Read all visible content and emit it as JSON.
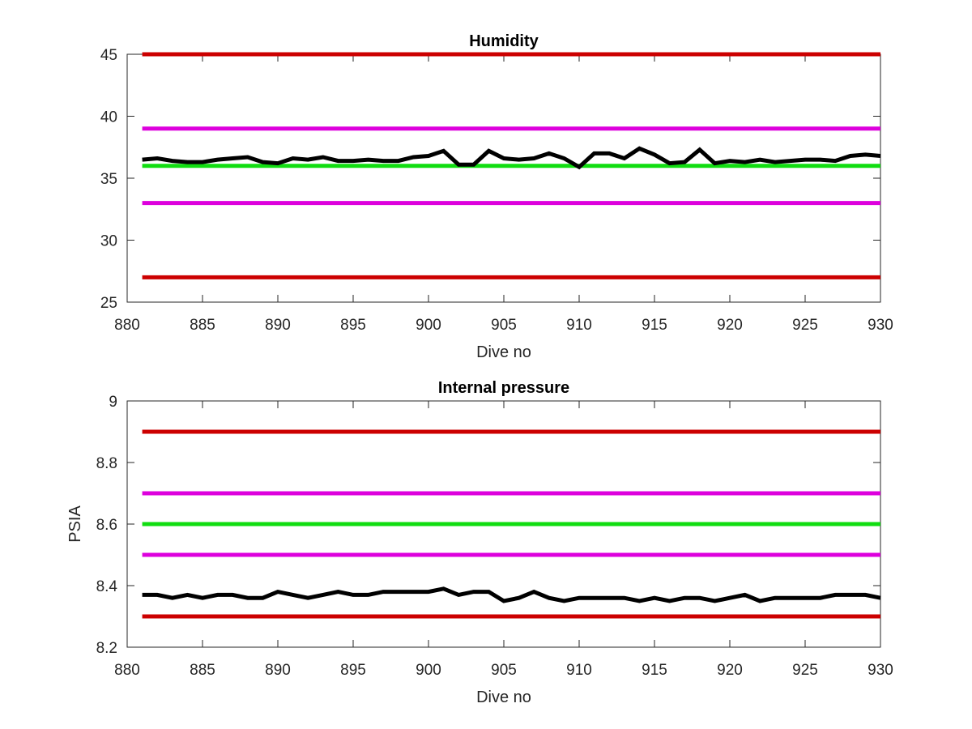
{
  "chart_data": [
    {
      "type": "line",
      "title": "Humidity",
      "xlabel": "Dive no",
      "ylabel": "",
      "xlim": [
        880,
        930
      ],
      "ylim": [
        25,
        45
      ],
      "xticks": [
        880,
        885,
        890,
        895,
        900,
        905,
        910,
        915,
        920,
        925,
        930
      ],
      "yticks": [
        25,
        30,
        35,
        40,
        45
      ],
      "grid": false,
      "x": [
        881,
        882,
        883,
        884,
        885,
        886,
        887,
        888,
        889,
        890,
        891,
        892,
        893,
        894,
        895,
        896,
        897,
        898,
        899,
        900,
        901,
        902,
        903,
        904,
        905,
        906,
        907,
        908,
        909,
        910,
        911,
        912,
        913,
        914,
        915,
        916,
        917,
        918,
        919,
        920,
        921,
        922,
        923,
        924,
        925,
        926,
        927,
        928,
        929,
        930
      ],
      "series": [
        {
          "color": "#cc0000",
          "values": [
            45,
            45,
            45,
            45,
            45,
            45,
            45,
            45,
            45,
            45,
            45,
            45,
            45,
            45,
            45,
            45,
            45,
            45,
            45,
            45,
            45,
            45,
            45,
            45,
            45,
            45,
            45,
            45,
            45,
            45,
            45,
            45,
            45,
            45,
            45,
            45,
            45,
            45,
            45,
            45,
            45,
            45,
            45,
            45,
            45,
            45,
            45,
            45,
            45,
            45
          ]
        },
        {
          "color": "#dd00dd",
          "values": [
            39,
            39,
            39,
            39,
            39,
            39,
            39,
            39,
            39,
            39,
            39,
            39,
            39,
            39,
            39,
            39,
            39,
            39,
            39,
            39,
            39,
            39,
            39,
            39,
            39,
            39,
            39,
            39,
            39,
            39,
            39,
            39,
            39,
            39,
            39,
            39,
            39,
            39,
            39,
            39,
            39,
            39,
            39,
            39,
            39,
            39,
            39,
            39,
            39,
            39
          ]
        },
        {
          "color": "#11dd11",
          "values": [
            36,
            36,
            36,
            36,
            36,
            36,
            36,
            36,
            36,
            36,
            36,
            36,
            36,
            36,
            36,
            36,
            36,
            36,
            36,
            36,
            36,
            36,
            36,
            36,
            36,
            36,
            36,
            36,
            36,
            36,
            36,
            36,
            36,
            36,
            36,
            36,
            36,
            36,
            36,
            36,
            36,
            36,
            36,
            36,
            36,
            36,
            36,
            36,
            36,
            36
          ]
        },
        {
          "color": "#dd00dd",
          "values": [
            33,
            33,
            33,
            33,
            33,
            33,
            33,
            33,
            33,
            33,
            33,
            33,
            33,
            33,
            33,
            33,
            33,
            33,
            33,
            33,
            33,
            33,
            33,
            33,
            33,
            33,
            33,
            33,
            33,
            33,
            33,
            33,
            33,
            33,
            33,
            33,
            33,
            33,
            33,
            33,
            33,
            33,
            33,
            33,
            33,
            33,
            33,
            33,
            33,
            33
          ]
        },
        {
          "color": "#cc0000",
          "values": [
            27,
            27,
            27,
            27,
            27,
            27,
            27,
            27,
            27,
            27,
            27,
            27,
            27,
            27,
            27,
            27,
            27,
            27,
            27,
            27,
            27,
            27,
            27,
            27,
            27,
            27,
            27,
            27,
            27,
            27,
            27,
            27,
            27,
            27,
            27,
            27,
            27,
            27,
            27,
            27,
            27,
            27,
            27,
            27,
            27,
            27,
            27,
            27,
            27,
            27
          ]
        },
        {
          "color": "#000000",
          "values": [
            36.5,
            36.6,
            36.4,
            36.3,
            36.3,
            36.5,
            36.6,
            36.7,
            36.3,
            36.2,
            36.6,
            36.5,
            36.7,
            36.4,
            36.4,
            36.5,
            36.4,
            36.4,
            36.7,
            36.8,
            37.2,
            36.1,
            36.1,
            37.2,
            36.6,
            36.5,
            36.6,
            37.0,
            36.6,
            35.9,
            37.0,
            37.0,
            36.6,
            37.4,
            36.9,
            36.2,
            36.3,
            37.3,
            36.2,
            36.4,
            36.3,
            36.5,
            36.3,
            36.4,
            36.5,
            36.5,
            36.4,
            36.8,
            36.9,
            36.8
          ]
        }
      ]
    },
    {
      "type": "line",
      "title": "Internal pressure",
      "xlabel": "Dive no",
      "ylabel": "PSIA",
      "xlim": [
        880,
        930
      ],
      "ylim": [
        8.2,
        9
      ],
      "xticks": [
        880,
        885,
        890,
        895,
        900,
        905,
        910,
        915,
        920,
        925,
        930
      ],
      "yticks": [
        8.2,
        8.4,
        8.6,
        8.8,
        9
      ],
      "ytick_labels": [
        "8.2",
        "8.4",
        "8.6",
        "8.8",
        "9"
      ],
      "grid": false,
      "x": [
        881,
        882,
        883,
        884,
        885,
        886,
        887,
        888,
        889,
        890,
        891,
        892,
        893,
        894,
        895,
        896,
        897,
        898,
        899,
        900,
        901,
        902,
        903,
        904,
        905,
        906,
        907,
        908,
        909,
        910,
        911,
        912,
        913,
        914,
        915,
        916,
        917,
        918,
        919,
        920,
        921,
        922,
        923,
        924,
        925,
        926,
        927,
        928,
        929,
        930
      ],
      "series": [
        {
          "color": "#cc0000",
          "values": [
            8.9,
            8.9,
            8.9,
            8.9,
            8.9,
            8.9,
            8.9,
            8.9,
            8.9,
            8.9,
            8.9,
            8.9,
            8.9,
            8.9,
            8.9,
            8.9,
            8.9,
            8.9,
            8.9,
            8.9,
            8.9,
            8.9,
            8.9,
            8.9,
            8.9,
            8.9,
            8.9,
            8.9,
            8.9,
            8.9,
            8.9,
            8.9,
            8.9,
            8.9,
            8.9,
            8.9,
            8.9,
            8.9,
            8.9,
            8.9,
            8.9,
            8.9,
            8.9,
            8.9,
            8.9,
            8.9,
            8.9,
            8.9,
            8.9,
            8.9
          ]
        },
        {
          "color": "#dd00dd",
          "values": [
            8.7,
            8.7,
            8.7,
            8.7,
            8.7,
            8.7,
            8.7,
            8.7,
            8.7,
            8.7,
            8.7,
            8.7,
            8.7,
            8.7,
            8.7,
            8.7,
            8.7,
            8.7,
            8.7,
            8.7,
            8.7,
            8.7,
            8.7,
            8.7,
            8.7,
            8.7,
            8.7,
            8.7,
            8.7,
            8.7,
            8.7,
            8.7,
            8.7,
            8.7,
            8.7,
            8.7,
            8.7,
            8.7,
            8.7,
            8.7,
            8.7,
            8.7,
            8.7,
            8.7,
            8.7,
            8.7,
            8.7,
            8.7,
            8.7,
            8.7
          ]
        },
        {
          "color": "#11dd11",
          "values": [
            8.6,
            8.6,
            8.6,
            8.6,
            8.6,
            8.6,
            8.6,
            8.6,
            8.6,
            8.6,
            8.6,
            8.6,
            8.6,
            8.6,
            8.6,
            8.6,
            8.6,
            8.6,
            8.6,
            8.6,
            8.6,
            8.6,
            8.6,
            8.6,
            8.6,
            8.6,
            8.6,
            8.6,
            8.6,
            8.6,
            8.6,
            8.6,
            8.6,
            8.6,
            8.6,
            8.6,
            8.6,
            8.6,
            8.6,
            8.6,
            8.6,
            8.6,
            8.6,
            8.6,
            8.6,
            8.6,
            8.6,
            8.6,
            8.6,
            8.6
          ]
        },
        {
          "color": "#dd00dd",
          "values": [
            8.5,
            8.5,
            8.5,
            8.5,
            8.5,
            8.5,
            8.5,
            8.5,
            8.5,
            8.5,
            8.5,
            8.5,
            8.5,
            8.5,
            8.5,
            8.5,
            8.5,
            8.5,
            8.5,
            8.5,
            8.5,
            8.5,
            8.5,
            8.5,
            8.5,
            8.5,
            8.5,
            8.5,
            8.5,
            8.5,
            8.5,
            8.5,
            8.5,
            8.5,
            8.5,
            8.5,
            8.5,
            8.5,
            8.5,
            8.5,
            8.5,
            8.5,
            8.5,
            8.5,
            8.5,
            8.5,
            8.5,
            8.5,
            8.5,
            8.5
          ]
        },
        {
          "color": "#cc0000",
          "values": [
            8.3,
            8.3,
            8.3,
            8.3,
            8.3,
            8.3,
            8.3,
            8.3,
            8.3,
            8.3,
            8.3,
            8.3,
            8.3,
            8.3,
            8.3,
            8.3,
            8.3,
            8.3,
            8.3,
            8.3,
            8.3,
            8.3,
            8.3,
            8.3,
            8.3,
            8.3,
            8.3,
            8.3,
            8.3,
            8.3,
            8.3,
            8.3,
            8.3,
            8.3,
            8.3,
            8.3,
            8.3,
            8.3,
            8.3,
            8.3,
            8.3,
            8.3,
            8.3,
            8.3,
            8.3,
            8.3,
            8.3,
            8.3,
            8.3,
            8.3
          ]
        },
        {
          "color": "#000000",
          "values": [
            8.37,
            8.37,
            8.36,
            8.37,
            8.36,
            8.37,
            8.37,
            8.36,
            8.36,
            8.38,
            8.37,
            8.36,
            8.37,
            8.38,
            8.37,
            8.37,
            8.38,
            8.38,
            8.38,
            8.38,
            8.39,
            8.37,
            8.38,
            8.38,
            8.35,
            8.36,
            8.38,
            8.36,
            8.35,
            8.36,
            8.36,
            8.36,
            8.36,
            8.35,
            8.36,
            8.35,
            8.36,
            8.36,
            8.35,
            8.36,
            8.37,
            8.35,
            8.36,
            8.36,
            8.36,
            8.36,
            8.37,
            8.37,
            8.37,
            8.36
          ]
        }
      ]
    }
  ]
}
